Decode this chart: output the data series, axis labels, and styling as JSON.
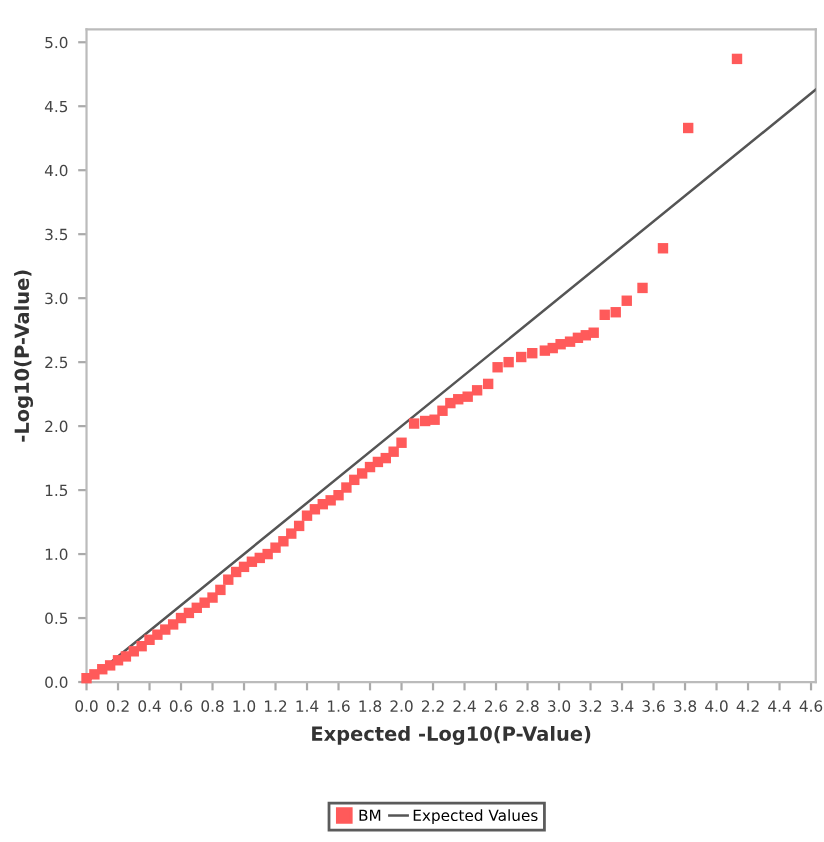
{
  "chart_data": {
    "type": "scatter",
    "xlabel": "Expected -Log10(P-Value)",
    "ylabel": "-Log10(P-Value)",
    "xlim": [
      0,
      4.63
    ],
    "ylim": [
      0,
      5.1
    ],
    "xticks": [
      {
        "value": 0,
        "label": "0.0"
      },
      {
        "value": 0.2,
        "label": "0.2"
      },
      {
        "value": 0.4,
        "label": "0.4"
      },
      {
        "value": 0.6,
        "label": "0.6"
      },
      {
        "value": 0.8,
        "label": "0.8"
      },
      {
        "value": 1,
        "label": "1.0"
      },
      {
        "value": 1.2,
        "label": "1.2"
      },
      {
        "value": 1.4,
        "label": "1.4"
      },
      {
        "value": 1.6,
        "label": "1.6"
      },
      {
        "value": 1.8,
        "label": "1.8"
      },
      {
        "value": 2,
        "label": "2.0"
      },
      {
        "value": 2.2,
        "label": "2.2"
      },
      {
        "value": 2.4,
        "label": "2.4"
      },
      {
        "value": 2.6,
        "label": "2.6"
      },
      {
        "value": 2.8,
        "label": "2.8"
      },
      {
        "value": 3,
        "label": "3.0"
      },
      {
        "value": 3.2,
        "label": "3.2"
      },
      {
        "value": 3.4,
        "label": "3.4"
      },
      {
        "value": 3.6,
        "label": "3.6"
      },
      {
        "value": 3.8,
        "label": "3.8"
      },
      {
        "value": 4,
        "label": "4.0"
      },
      {
        "value": 4.2,
        "label": "4.2"
      },
      {
        "value": 4.4,
        "label": "4.4"
      },
      {
        "value": 4.6,
        "label": "4.6"
      }
    ],
    "yticks": [
      {
        "value": 0,
        "label": "0.0"
      },
      {
        "value": 0.5,
        "label": "0.5"
      },
      {
        "value": 1,
        "label": "1.0"
      },
      {
        "value": 1.5,
        "label": "1.5"
      },
      {
        "value": 2,
        "label": "2.0"
      },
      {
        "value": 2.5,
        "label": "2.5"
      },
      {
        "value": 3,
        "label": "3.0"
      },
      {
        "value": 3.5,
        "label": "3.5"
      },
      {
        "value": 4,
        "label": "4.0"
      },
      {
        "value": 4.5,
        "label": "4.5"
      },
      {
        "value": 5,
        "label": "5.0"
      }
    ],
    "grid": false,
    "legend": "bottom",
    "marker": "square",
    "series": [
      {
        "name": "BM",
        "color": "#ff5a5a",
        "x": [
          0.0,
          0.05,
          0.1,
          0.15,
          0.2,
          0.25,
          0.3,
          0.35,
          0.4,
          0.45,
          0.5,
          0.55,
          0.6,
          0.65,
          0.7,
          0.75,
          0.8,
          0.85,
          0.9,
          0.95,
          1.0,
          1.05,
          1.1,
          1.15,
          1.2,
          1.25,
          1.3,
          1.35,
          1.4,
          1.45,
          1.5,
          1.55,
          1.6,
          1.65,
          1.7,
          1.75,
          1.8,
          1.85,
          1.9,
          1.95,
          2.0,
          2.08,
          2.15,
          2.21,
          2.26,
          2.31,
          2.36,
          2.42,
          2.48,
          2.55,
          2.61,
          2.68,
          2.76,
          2.83,
          2.91,
          2.96,
          3.01,
          3.07,
          3.12,
          3.17,
          3.22,
          3.29,
          3.36,
          3.43,
          3.53,
          3.66,
          3.82,
          4.13
        ],
        "values": [
          0.03,
          0.06,
          0.1,
          0.13,
          0.17,
          0.2,
          0.24,
          0.28,
          0.33,
          0.37,
          0.41,
          0.45,
          0.5,
          0.54,
          0.58,
          0.62,
          0.66,
          0.72,
          0.8,
          0.86,
          0.9,
          0.94,
          0.97,
          1.0,
          1.05,
          1.1,
          1.16,
          1.22,
          1.3,
          1.35,
          1.39,
          1.42,
          1.46,
          1.52,
          1.58,
          1.63,
          1.68,
          1.72,
          1.75,
          1.8,
          1.87,
          2.02,
          2.04,
          2.05,
          2.12,
          2.18,
          2.21,
          2.23,
          2.28,
          2.33,
          2.46,
          2.5,
          2.54,
          2.57,
          2.59,
          2.61,
          2.64,
          2.66,
          2.69,
          2.71,
          2.73,
          2.87,
          2.89,
          2.98,
          3.08,
          3.39,
          4.33,
          4.87
        ]
      },
      {
        "name": "Expected Values",
        "type": "line",
        "color": "#555555",
        "marker": "none",
        "line_style": "solid",
        "x": [
          0,
          4.63
        ],
        "values": [
          0,
          4.63
        ]
      }
    ]
  }
}
